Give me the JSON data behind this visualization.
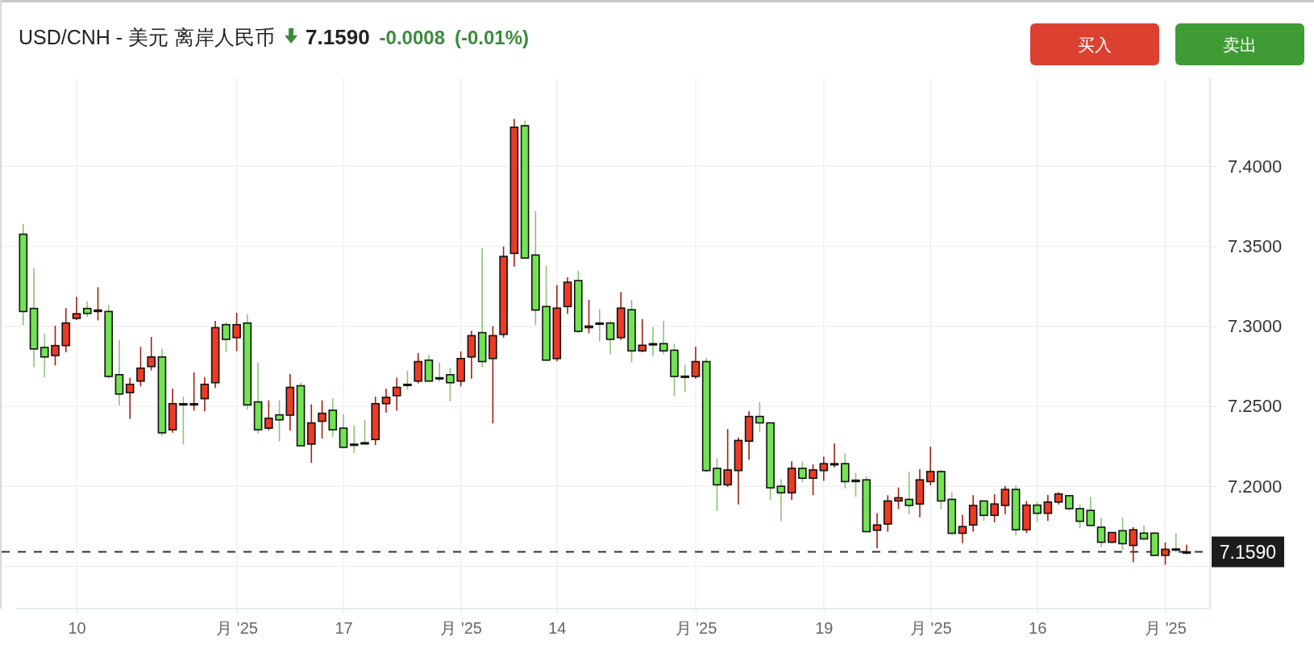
{
  "chart_data": {
    "type": "candlestick",
    "title": "USD/CNH - 美元 离岸人民币",
    "annotations": [
      "7.1590",
      "-0.0008",
      "(-0.01%)",
      "买入",
      "卖出"
    ],
    "categories": [
      null,
      null,
      null,
      null,
      null,
      "10",
      null,
      null,
      null,
      null,
      null,
      null,
      null,
      null,
      null,
      null,
      null,
      null,
      null,
      null,
      "月 '25",
      null,
      null,
      null,
      null,
      null,
      null,
      null,
      null,
      null,
      "17",
      null,
      null,
      null,
      null,
      null,
      null,
      null,
      null,
      null,
      null,
      "月 '25",
      null,
      null,
      null,
      null,
      null,
      null,
      null,
      null,
      "14",
      null,
      null,
      null,
      null,
      null,
      null,
      null,
      null,
      null,
      null,
      null,
      null,
      "月 '25",
      null,
      null,
      null,
      null,
      null,
      null,
      null,
      null,
      null,
      null,
      null,
      "19",
      null,
      null,
      null,
      null,
      null,
      null,
      null,
      null,
      null,
      "月 '25",
      null,
      null,
      null,
      null,
      null,
      null,
      null,
      null,
      null,
      "16",
      null,
      null,
      null,
      null,
      null,
      null,
      null,
      null,
      null,
      null,
      null,
      "月 '25",
      null,
      null
    ],
    "ohlc": [
      [
        7.3575,
        7.3639,
        7.3007,
        7.3092
      ],
      [
        7.3111,
        7.3364,
        7.2744,
        7.2858
      ],
      [
        7.2867,
        7.2952,
        7.2682,
        7.2808
      ],
      [
        7.2817,
        7.3003,
        7.2755,
        7.2879
      ],
      [
        7.2879,
        7.3113,
        7.2837,
        7.302
      ],
      [
        7.3049,
        7.3184,
        7.3039,
        7.3078
      ],
      [
        7.3111,
        7.3155,
        7.3057,
        7.308
      ],
      [
        7.3092,
        7.3244,
        7.3036,
        7.3101
      ],
      [
        7.3092,
        7.3134,
        7.2674,
        7.2686
      ],
      [
        7.2697,
        7.2914,
        7.2504,
        7.2576
      ],
      [
        7.2585,
        7.2678,
        7.2421,
        7.2637
      ],
      [
        7.2657,
        7.2871,
        7.2624,
        7.2738
      ],
      [
        7.2748,
        7.2933,
        7.2724,
        7.2808
      ],
      [
        7.2808,
        7.286,
        7.2315,
        7.2334
      ],
      [
        7.2353,
        7.261,
        7.2334,
        7.2516
      ],
      [
        7.2516,
        7.256,
        7.2261,
        7.2514
      ],
      [
        7.2514,
        7.2711,
        7.2473,
        7.2516
      ],
      [
        7.2547,
        7.2682,
        7.2469,
        7.2637
      ],
      [
        7.2647,
        7.3034,
        7.2614,
        7.2991
      ],
      [
        7.301,
        7.3024,
        7.2837,
        7.2918
      ],
      [
        7.2929,
        7.3084,
        7.2844,
        7.301
      ],
      [
        7.302,
        7.3074,
        7.2479,
        7.2508
      ],
      [
        7.2527,
        7.2773,
        7.233,
        7.2353
      ],
      [
        7.2363,
        7.2537,
        7.2349,
        7.2425
      ],
      [
        7.2446,
        7.2537,
        7.228,
        7.2415
      ],
      [
        7.2444,
        7.2701,
        7.2349,
        7.2618
      ],
      [
        7.2628,
        7.2647,
        7.2253,
        7.2253
      ],
      [
        7.2263,
        7.2512,
        7.2147,
        7.2396
      ],
      [
        7.2406,
        7.2537,
        7.2299,
        7.2456
      ],
      [
        7.2475,
        7.255,
        7.2309,
        7.2353
      ],
      [
        7.2363,
        7.245,
        7.2243,
        7.2243
      ],
      [
        7.2263,
        7.2377,
        7.2208,
        7.2261
      ],
      [
        7.2272,
        7.2415,
        7.2263,
        7.227
      ],
      [
        7.2292,
        7.256,
        7.2257,
        7.2516
      ],
      [
        7.2516,
        7.261,
        7.246,
        7.2556
      ],
      [
        7.2566,
        7.2678,
        7.2473,
        7.2618
      ],
      [
        7.2637,
        7.2721,
        7.2605,
        7.2635
      ],
      [
        7.2657,
        7.2833,
        7.2643,
        7.2779
      ],
      [
        7.2788,
        7.2821,
        7.2657,
        7.2657
      ],
      [
        7.2678,
        7.2773,
        7.2653,
        7.2676
      ],
      [
        7.2697,
        7.274,
        7.2531,
        7.2647
      ],
      [
        7.2657,
        7.2842,
        7.2624,
        7.2798
      ],
      [
        7.2808,
        7.2972,
        7.2672,
        7.2941
      ],
      [
        7.296,
        7.3488,
        7.2744,
        7.2779
      ],
      [
        7.2798,
        7.3001,
        7.2392,
        7.2941
      ],
      [
        7.2949,
        7.3498,
        7.2929,
        7.3436
      ],
      [
        7.3455,
        7.4296,
        7.3372,
        7.4244
      ],
      [
        7.4253,
        7.4286,
        7.3426,
        7.3426
      ],
      [
        7.3445,
        7.372,
        7.3007,
        7.3101
      ],
      [
        7.3123,
        7.3378,
        7.2782,
        7.2788
      ],
      [
        7.2798,
        7.3256,
        7.2782,
        7.3113
      ],
      [
        7.3123,
        7.3306,
        7.3078,
        7.3275
      ],
      [
        7.3285,
        7.3347,
        7.2956,
        7.2968
      ],
      [
        7.2991,
        7.3165,
        7.2956,
        7.3001
      ],
      [
        7.302,
        7.3107,
        7.2904,
        7.3018
      ],
      [
        7.302,
        7.3034,
        7.2825,
        7.2918
      ],
      [
        7.2929,
        7.3215,
        7.2914,
        7.3113
      ],
      [
        7.3103,
        7.3165,
        7.2775,
        7.2846
      ],
      [
        7.2846,
        7.3045,
        7.2837,
        7.2881
      ],
      [
        7.2891,
        7.2995,
        7.2813,
        7.2889
      ],
      [
        7.2891,
        7.3034,
        7.2825,
        7.2846
      ],
      [
        7.285,
        7.2891,
        7.2562,
        7.2686
      ],
      [
        7.2688,
        7.2759,
        7.2591,
        7.2686
      ],
      [
        7.2686,
        7.2871,
        7.2672,
        7.2779
      ],
      [
        7.2779,
        7.2802,
        7.2087,
        7.2098
      ],
      [
        7.2112,
        7.2176,
        7.1845,
        7.2009
      ],
      [
        7.2009,
        7.2357,
        7.1996,
        7.2102
      ],
      [
        7.2098,
        7.2305,
        7.1886,
        7.2286
      ],
      [
        7.2282,
        7.2469,
        7.2166,
        7.2436
      ],
      [
        7.2436,
        7.2527,
        7.234,
        7.2396
      ],
      [
        7.2396,
        7.2396,
        7.1915,
        7.199
      ],
      [
        7.2,
        7.2044,
        7.1783,
        7.1959
      ],
      [
        7.1959,
        7.2156,
        7.1915,
        7.2112
      ],
      [
        7.2112,
        7.2156,
        7.2025,
        7.205
      ],
      [
        7.205,
        7.2137,
        7.1944,
        7.2102
      ],
      [
        7.2098,
        7.2185,
        7.2034,
        7.2141
      ],
      [
        7.2139,
        7.2266,
        7.2118,
        7.2141
      ],
      [
        7.2141,
        7.2205,
        7.1986,
        7.2029
      ],
      [
        7.2038,
        7.2083,
        7.1934,
        7.2029
      ],
      [
        7.204,
        7.2063,
        7.1716,
        7.1716
      ],
      [
        7.1725,
        7.1832,
        7.1613,
        7.1758
      ],
      [
        7.1764,
        7.1944,
        7.1716,
        7.1908
      ],
      [
        7.1908,
        7.1992,
        7.1857,
        7.1928
      ],
      [
        7.1918,
        7.2092,
        7.1826,
        7.188
      ],
      [
        7.1889,
        7.2106,
        7.1806,
        7.204
      ],
      [
        7.2029,
        7.2247,
        7.2005,
        7.2092
      ],
      [
        7.2092,
        7.2102,
        7.1857,
        7.1908
      ],
      [
        7.1918,
        7.1963,
        7.1696,
        7.1706
      ],
      [
        7.1706,
        7.1822,
        7.1644,
        7.1748
      ],
      [
        7.1758,
        7.1944,
        7.1716,
        7.188
      ],
      [
        7.1908,
        7.1908,
        7.1783,
        7.1818
      ],
      [
        7.1818,
        7.1951,
        7.1774,
        7.1889
      ],
      [
        7.188,
        7.2002,
        7.1826,
        7.198
      ],
      [
        7.198,
        7.2007,
        7.1693,
        7.1728
      ],
      [
        7.1728,
        7.1908,
        7.1707,
        7.1882
      ],
      [
        7.1882,
        7.1904,
        7.1777,
        7.1831
      ],
      [
        7.1831,
        7.1947,
        7.1783,
        7.1901
      ],
      [
        7.1901,
        7.1963,
        7.1886,
        7.1952
      ],
      [
        7.1941,
        7.1947,
        7.1847,
        7.186
      ],
      [
        7.186,
        7.1886,
        7.1737,
        7.1781
      ],
      [
        7.1849,
        7.1934,
        7.175,
        7.1755
      ],
      [
        7.1744,
        7.1803,
        7.1619,
        7.165
      ],
      [
        7.165,
        7.1711,
        7.1645,
        7.1711
      ],
      [
        7.1722,
        7.1803,
        7.1601,
        7.1641
      ],
      [
        7.163,
        7.1744,
        7.1525,
        7.1728
      ],
      [
        7.1707,
        7.1755,
        7.1663,
        7.1671
      ],
      [
        7.1707,
        7.1711,
        7.1568,
        7.1568
      ],
      [
        7.1568,
        7.165,
        7.1509,
        7.1606
      ],
      [
        7.1608,
        7.1707,
        7.159,
        7.1601
      ],
      [
        7.1585,
        7.1634,
        7.1575,
        7.159
      ]
    ],
    "ylim": [
      7.1235,
      7.455
    ],
    "yticks": [
      {
        "value": 7.15,
        "label": null
      },
      {
        "value": 7.2,
        "label": "7.2000"
      },
      {
        "value": 7.25,
        "label": "7.2500"
      },
      {
        "value": 7.3,
        "label": "7.3000"
      },
      {
        "value": 7.35,
        "label": "7.3500"
      },
      {
        "value": 7.4,
        "label": "7.4000"
      }
    ],
    "ref_lines": [
      {
        "axis": "y",
        "value": 7.159,
        "label": "7.1590",
        "color": "#333333",
        "line_style": "dashed"
      }
    ],
    "grid": true
  }
}
